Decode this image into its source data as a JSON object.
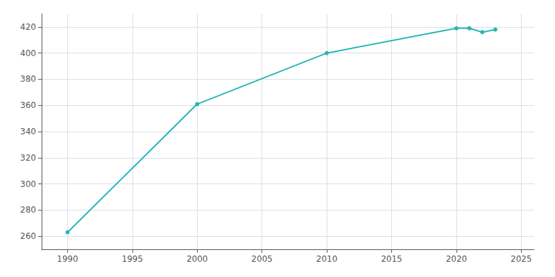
{
  "chart_data": {
    "type": "line",
    "x": [
      1990,
      2000,
      2010,
      2020,
      2021,
      2022,
      2023
    ],
    "values": [
      263,
      361,
      400,
      419,
      419,
      416,
      418
    ],
    "color": "#29b5b5",
    "marker": "circle",
    "xlim": [
      1988,
      2026
    ],
    "xticks": [
      1990,
      1995,
      2000,
      2005,
      2010,
      2015,
      2020,
      2025
    ],
    "ylim": [
      250,
      430
    ],
    "yticks": [
      260,
      280,
      300,
      320,
      340,
      360,
      380,
      400,
      420
    ],
    "grid": true
  }
}
